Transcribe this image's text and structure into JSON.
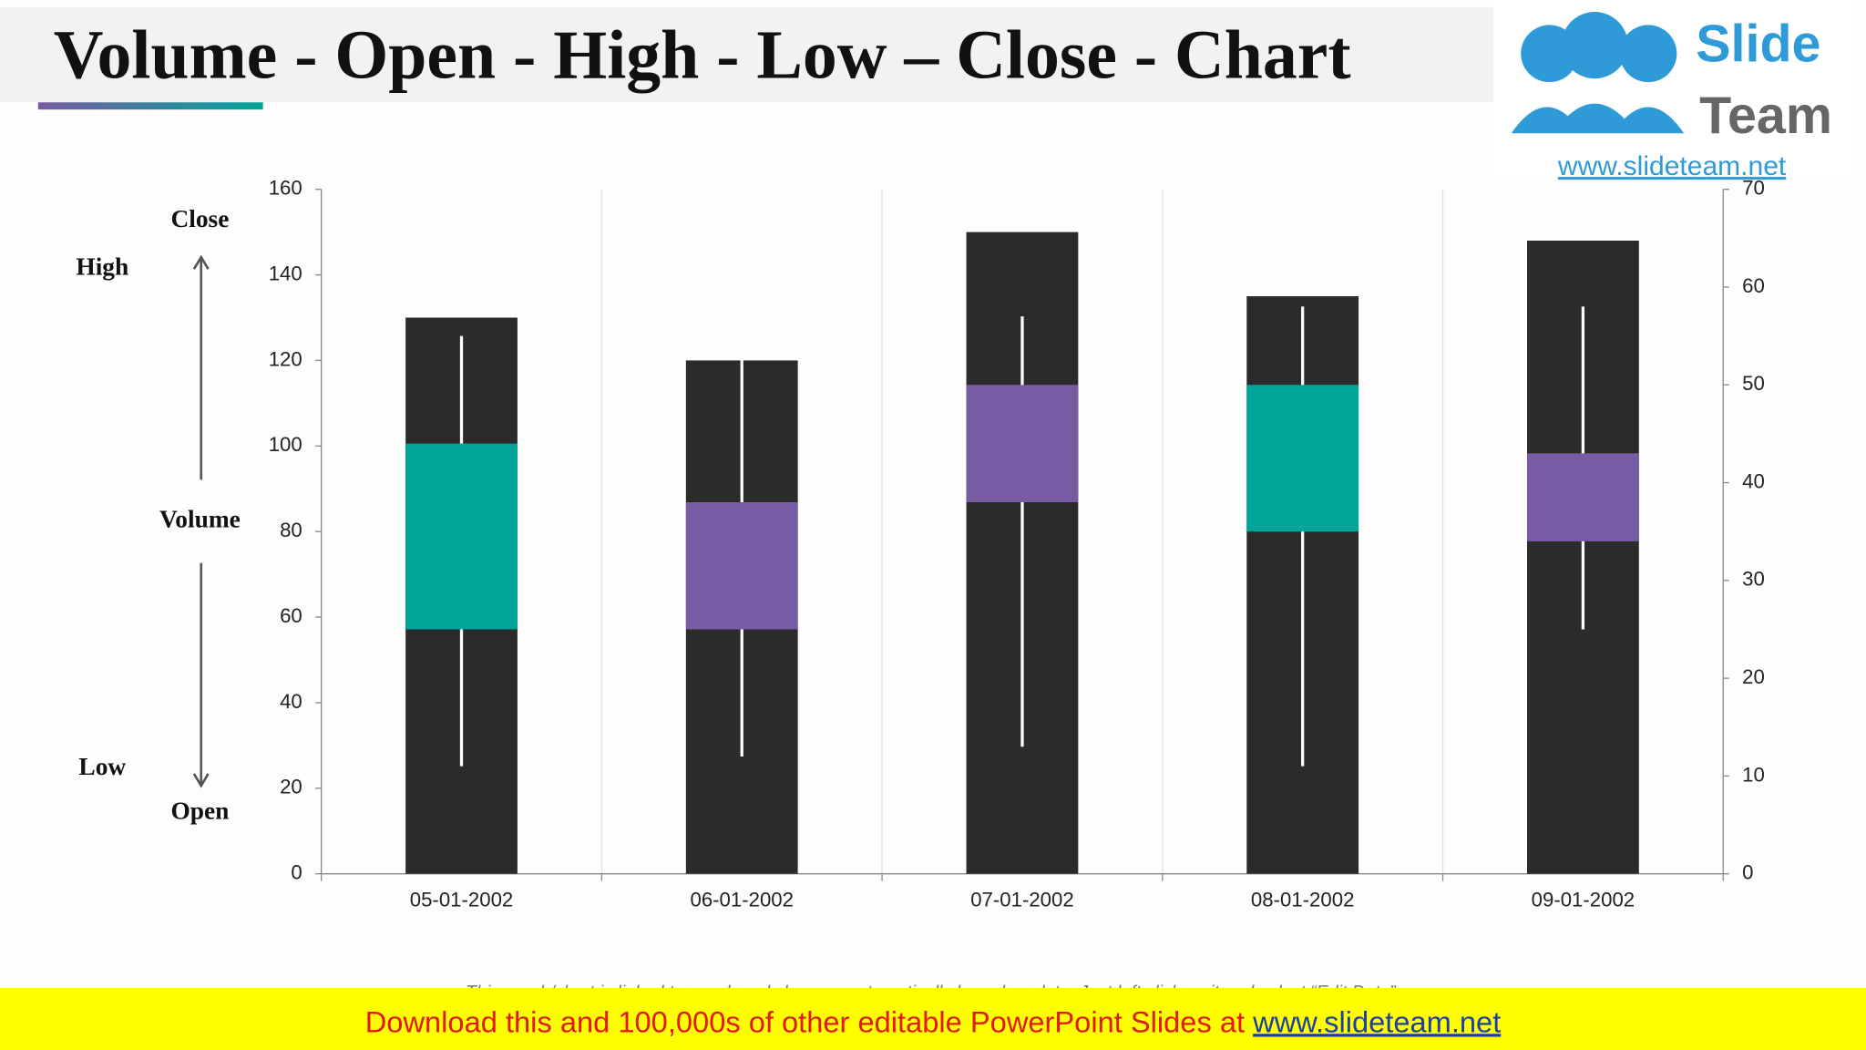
{
  "chart_data": {
    "type": "volume-ohlc",
    "title": "Volume - Open - High - Low – Close - Chart",
    "categories": [
      "05-01-2002",
      "06-01-2002",
      "07-01-2002",
      "08-01-2002",
      "09-01-2002"
    ],
    "volume": [
      130,
      120,
      150,
      135,
      148
    ],
    "open": [
      25,
      38,
      50,
      35,
      43
    ],
    "high": [
      55,
      52.5,
      57,
      58,
      58
    ],
    "low": [
      11,
      12,
      13,
      11,
      25
    ],
    "close": [
      44,
      25,
      38,
      50,
      34
    ],
    "volume_color": "#2b2b2b",
    "up_color": "#00a59a",
    "down_color": "#775ba3",
    "wick_color": "#ffffff",
    "ylim": [
      0,
      160
    ],
    "yticks": [
      0,
      20,
      40,
      60,
      80,
      100,
      120,
      140,
      160
    ],
    "y2lim": [
      0,
      70
    ],
    "y2ticks": [
      0,
      10,
      20,
      30,
      40,
      50,
      60,
      70
    ],
    "annotations": [
      "Close",
      "High",
      "Volume",
      "Low",
      "Open"
    ]
  },
  "page": {
    "footnote": "This graph/chart is linked to excel, and changes automatically based on data. Just left click on it and select “Edit Data”.",
    "banner": "Download this and 100,000s of other editable PowerPoint Slides at ",
    "banner_link": "www.slideteam.net",
    "logo": {
      "word1": "Slide",
      "word2": "Team",
      "url": "www.slideteam.net"
    }
  }
}
